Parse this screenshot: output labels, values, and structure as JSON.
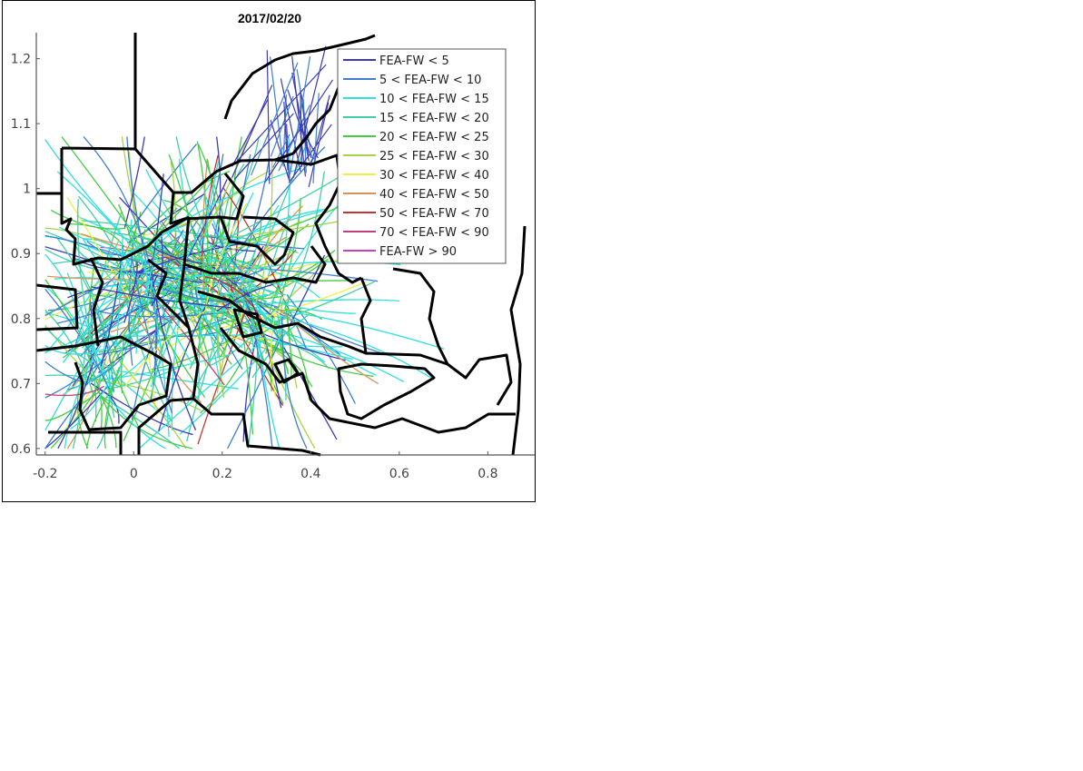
{
  "chart_data": {
    "type": "line",
    "title": "2017/02/20",
    "xlabel": "",
    "ylabel": "",
    "xlim": [
      -0.22,
      0.91
    ],
    "ylim": [
      0.59,
      1.24
    ],
    "xticks": [
      -0.2,
      0,
      0.2,
      0.4,
      0.6,
      0.8
    ],
    "xtick_labels": [
      "-0.2",
      "0",
      "0.2",
      "0.4",
      "0.6",
      "0.8"
    ],
    "yticks": [
      0.6,
      0.7,
      0.8,
      0.9,
      1.0,
      1.1,
      1.2
    ],
    "ytick_labels": [
      "0.6",
      "0.7",
      "0.8",
      "0.9",
      "1",
      "1.1",
      "1.2"
    ],
    "grid": false,
    "legend_position": "top-right",
    "series": [
      {
        "name": "FEA-FW < 5",
        "color": "#3b3bb5"
      },
      {
        "name": "5 < FEA-FW < 10",
        "color": "#3f7fcf"
      },
      {
        "name": "10 < FEA-FW < 15",
        "color": "#30e0e0"
      },
      {
        "name": "15 < FEA-FW < 20",
        "color": "#40d0a8"
      },
      {
        "name": "20 < FEA-FW < 25",
        "color": "#44cc44"
      },
      {
        "name": "25 < FEA-FW < 30",
        "color": "#a8d448"
      },
      {
        "name": "30 < FEA-FW < 40",
        "color": "#eeee44"
      },
      {
        "name": "40 < FEA-FW < 50",
        "color": "#d89458"
      },
      {
        "name": "50 < FEA-FW < 70",
        "color": "#c03434"
      },
      {
        "name": "70 < FEA-FW < 90",
        "color": "#c0407a"
      },
      {
        "name": "FEA-FW > 90",
        "color": "#c244c4"
      }
    ]
  }
}
